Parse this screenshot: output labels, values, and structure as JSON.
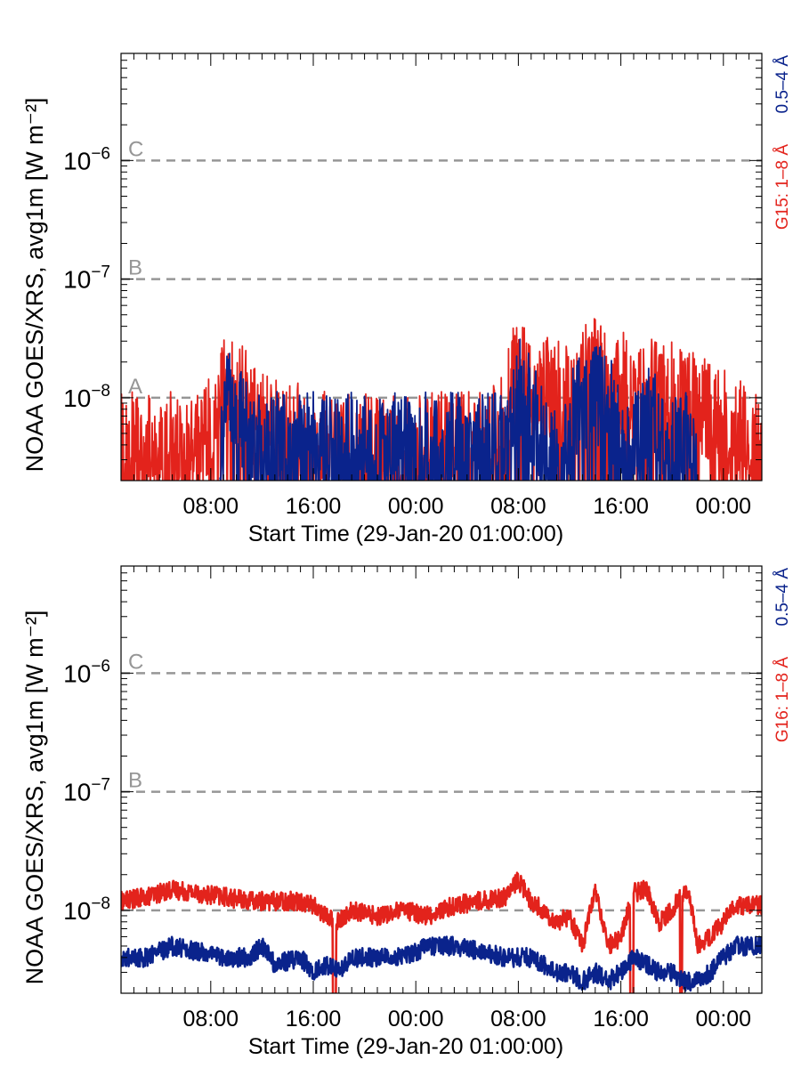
{
  "chart_data": [
    {
      "type": "line",
      "title": "",
      "xlabel": "Start Time (29-Jan-20 01:00:00)",
      "ylabel": "NOAA GOES/XRS, avg1m [W m⁻²]",
      "yscale": "log",
      "ylim": [
        2e-09,
        8e-06
      ],
      "xlim_hours": [
        0,
        50
      ],
      "x_tick_labels": [
        "08:00",
        "16:00",
        "00:00",
        "08:00",
        "16:00",
        "00:00"
      ],
      "x_tick_hours": [
        7,
        15,
        23,
        31,
        39,
        47
      ],
      "y_tick_labels": [
        {
          "base": "10",
          "exp": "−6",
          "value": 1e-06
        },
        {
          "base": "10",
          "exp": "−7",
          "value": 1e-07
        },
        {
          "base": "10",
          "exp": "−8",
          "value": 1e-08
        }
      ],
      "thresholds": [
        {
          "label": "C",
          "value": 1e-06
        },
        {
          "label": "B",
          "value": 1e-07
        },
        {
          "label": "A",
          "value": 1e-08
        }
      ],
      "legend": {
        "placement": "right-vertical",
        "blue_label": "0.5–4 Å",
        "red_label": "G15: 1–8 Å"
      },
      "colors": {
        "long": "#e3231c",
        "short": "#0a238c",
        "threshold": "#969696",
        "axis": "#000000"
      },
      "series": [
        {
          "name": "G15: 1–8 Å",
          "color": "#e3231c",
          "x": [
            0,
            2,
            4,
            6,
            7.5,
            8.2,
            9,
            10,
            12,
            14,
            16,
            18,
            20,
            22,
            24,
            26,
            28,
            30,
            30.5,
            31,
            32,
            34,
            36,
            36.8,
            38,
            40,
            42,
            44,
            46,
            48,
            50
          ],
          "y": [
            4e-09,
            4e-09,
            4e-09,
            4e-09,
            8e-09,
            1.6e-08,
            1.2e-08,
            8e-09,
            5e-09,
            5e-09,
            4e-09,
            4e-09,
            4e-09,
            4e-09,
            4e-09,
            4e-09,
            4e-09,
            6e-09,
            1.5e-08,
            1.6e-08,
            1.3e-08,
            1.1e-08,
            1.3e-08,
            2e-08,
            1.4e-08,
            1.2e-08,
            1.1e-08,
            1e-08,
            8e-09,
            5e-09,
            5e-09
          ]
        },
        {
          "name": "",
          "color": "#0a238c",
          "x": [
            7.7,
            8.3,
            9,
            10,
            30.3,
            31,
            32,
            33.5,
            34.5,
            35.5,
            36.8,
            38,
            39.5,
            40.5,
            41.5,
            42.5,
            44,
            45
          ],
          "y": [
            3e-09,
            1.2e-08,
            9e-09,
            4e-09,
            4e-09,
            1.2e-08,
            8e-09,
            3e-09,
            3e-09,
            8e-09,
            1.2e-08,
            9e-09,
            3e-09,
            6e-09,
            7e-09,
            3e-09,
            5e-09,
            3e-09
          ]
        }
      ]
    },
    {
      "type": "line",
      "title": "",
      "xlabel": "Start Time (29-Jan-20 01:00:00)",
      "ylabel": "NOAA GOES/XRS, avg1m [W m⁻²]",
      "yscale": "log",
      "ylim": [
        2e-09,
        8e-06
      ],
      "xlim_hours": [
        0,
        50
      ],
      "x_tick_labels": [
        "08:00",
        "16:00",
        "00:00",
        "08:00",
        "16:00",
        "00:00"
      ],
      "x_tick_hours": [
        7,
        15,
        23,
        31,
        39,
        47
      ],
      "y_tick_labels": [
        {
          "base": "10",
          "exp": "−6",
          "value": 1e-06
        },
        {
          "base": "10",
          "exp": "−7",
          "value": 1e-07
        },
        {
          "base": "10",
          "exp": "−8",
          "value": 1e-08
        }
      ],
      "thresholds": [
        {
          "label": "C",
          "value": 1e-06
        },
        {
          "label": "B",
          "value": 1e-07
        },
        {
          "label": "A",
          "value": 1e-08
        }
      ],
      "legend": {
        "placement": "right-vertical",
        "blue_label": "0.5–4 Å",
        "red_label": "G16: 1–8 Å"
      },
      "colors": {
        "long": "#e3231c",
        "short": "#0a238c",
        "threshold": "#969696",
        "axis": "#000000"
      },
      "series": [
        {
          "name": "G16: 1–8 Å",
          "color": "#e3231c",
          "x": [
            0,
            2,
            4,
            6,
            8,
            10,
            12,
            14,
            15,
            16,
            17,
            18,
            20,
            22,
            24,
            26,
            28,
            30,
            31,
            32,
            34,
            35,
            36,
            37,
            38,
            39,
            40,
            41,
            42,
            43,
            44,
            44.5,
            45,
            46,
            47,
            48,
            50
          ],
          "y": [
            1.2e-08,
            1.3e-08,
            1.5e-08,
            1.4e-08,
            1.3e-08,
            1.2e-08,
            1.2e-08,
            1.2e-08,
            1.1e-08,
            9e-09,
            8e-09,
            1e-08,
            9e-09,
            1e-08,
            9e-09,
            1.1e-08,
            1.2e-08,
            1.3e-08,
            1.8e-08,
            1.2e-08,
            8e-09,
            9e-09,
            5e-09,
            1.5e-08,
            5e-09,
            6e-09,
            1.4e-08,
            1.5e-08,
            8e-09,
            1e-08,
            1.5e-08,
            1.1e-08,
            5e-09,
            6e-09,
            8e-09,
            1.1e-08,
            1.1e-08
          ]
        },
        {
          "name": "",
          "color": "#0a238c",
          "x": [
            0,
            2,
            4,
            6,
            8,
            10,
            11,
            12,
            14,
            15,
            16,
            17,
            18,
            20,
            22,
            23,
            24,
            26,
            28,
            30,
            32,
            34,
            35,
            36,
            37,
            38,
            39,
            40,
            41,
            42,
            43,
            44,
            45,
            46,
            47,
            48,
            50
          ],
          "y": [
            4e-09,
            4e-09,
            5e-09,
            4.5e-09,
            4e-09,
            4e-09,
            5e-09,
            3.5e-09,
            4e-09,
            3e-09,
            3.5e-09,
            3e-09,
            4e-09,
            4e-09,
            4e-09,
            4.5e-09,
            5e-09,
            5e-09,
            4.5e-09,
            4e-09,
            4e-09,
            3e-09,
            3e-09,
            2.5e-09,
            3e-09,
            2.5e-09,
            3e-09,
            4e-09,
            3.5e-09,
            3e-09,
            3e-09,
            2.5e-09,
            2.5e-09,
            3e-09,
            4e-09,
            5e-09,
            5e-09
          ]
        }
      ]
    }
  ]
}
